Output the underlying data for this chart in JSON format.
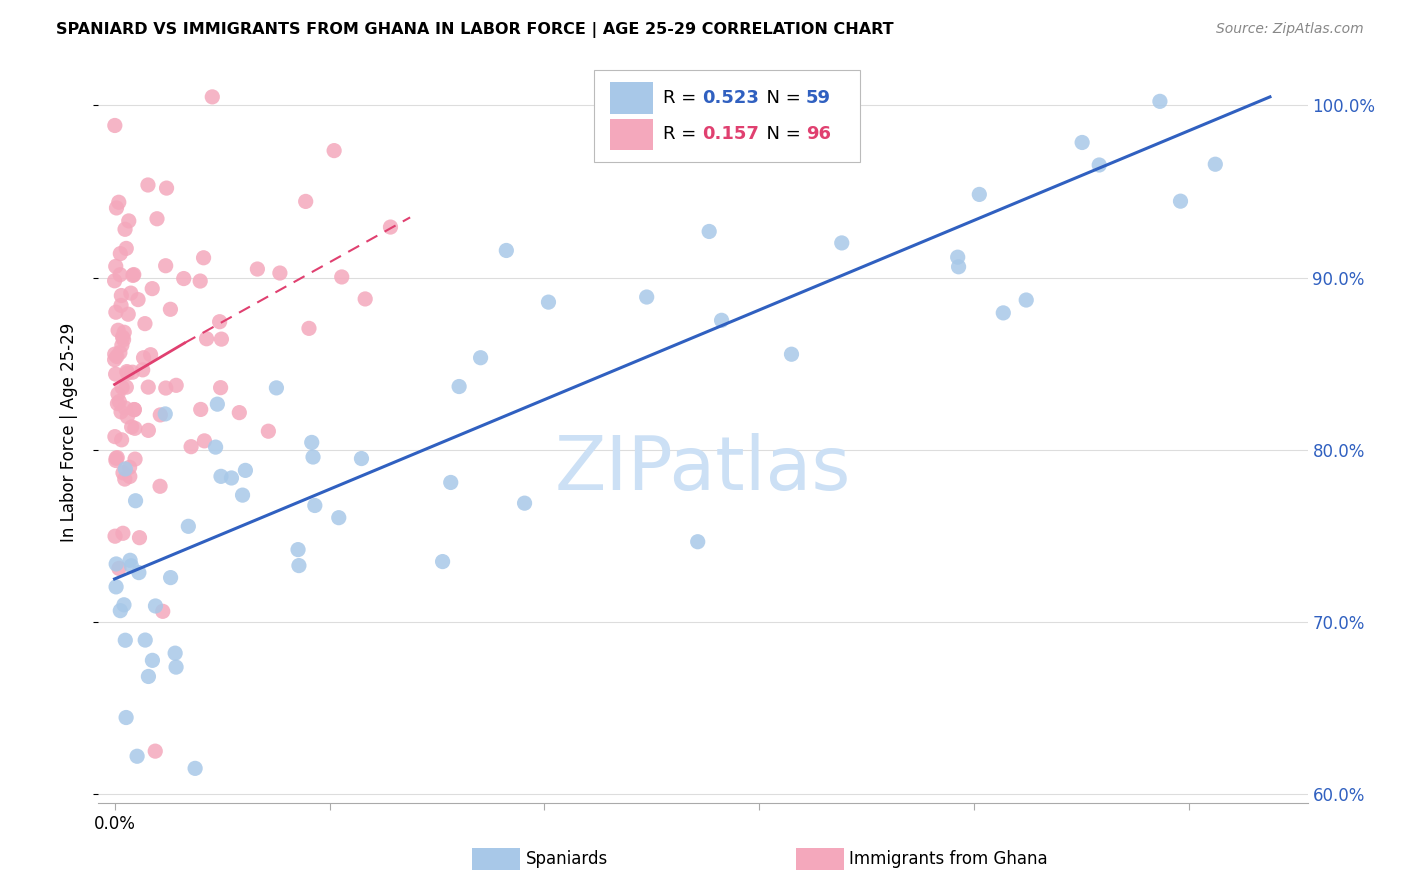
{
  "title": "SPANIARD VS IMMIGRANTS FROM GHANA IN LABOR FORCE | AGE 25-29 CORRELATION CHART",
  "source": "Source: ZipAtlas.com",
  "ylabel": "In Labor Force | Age 25-29",
  "xlim": [
    -0.003,
    0.222
  ],
  "ylim": [
    0.595,
    1.025
  ],
  "yticks": [
    0.6,
    0.7,
    0.8,
    0.9,
    1.0
  ],
  "ytick_labels": [
    "60.0%",
    "70.0%",
    "80.0%",
    "90.0%",
    "100.0%"
  ],
  "xtick_vals": [
    0.0,
    0.04,
    0.08,
    0.12,
    0.16,
    0.2
  ],
  "xtick_label_0": "0.0%",
  "spaniards_R": 0.523,
  "spaniards_N": 59,
  "ghana_R": 0.157,
  "ghana_N": 96,
  "spaniards_color": "#a8c8e8",
  "ghana_color": "#f4a8bc",
  "trend_spaniards_color": "#3060c0",
  "trend_ghana_color": "#e04070",
  "watermark_color": "#cce0f5",
  "sp_trend_x0": 0.0,
  "sp_trend_y0": 0.725,
  "sp_trend_x1": 0.215,
  "sp_trend_y1": 1.005,
  "gh_trend_x0": 0.0,
  "gh_trend_y0": 0.838,
  "gh_trend_x1": 0.055,
  "gh_trend_y1": 0.935,
  "gh_trend_dashed_x0": 0.013,
  "gh_trend_dashed_y0": 0.862,
  "gh_trend_dashed_x1": 0.055,
  "gh_trend_dashed_y1": 0.935
}
